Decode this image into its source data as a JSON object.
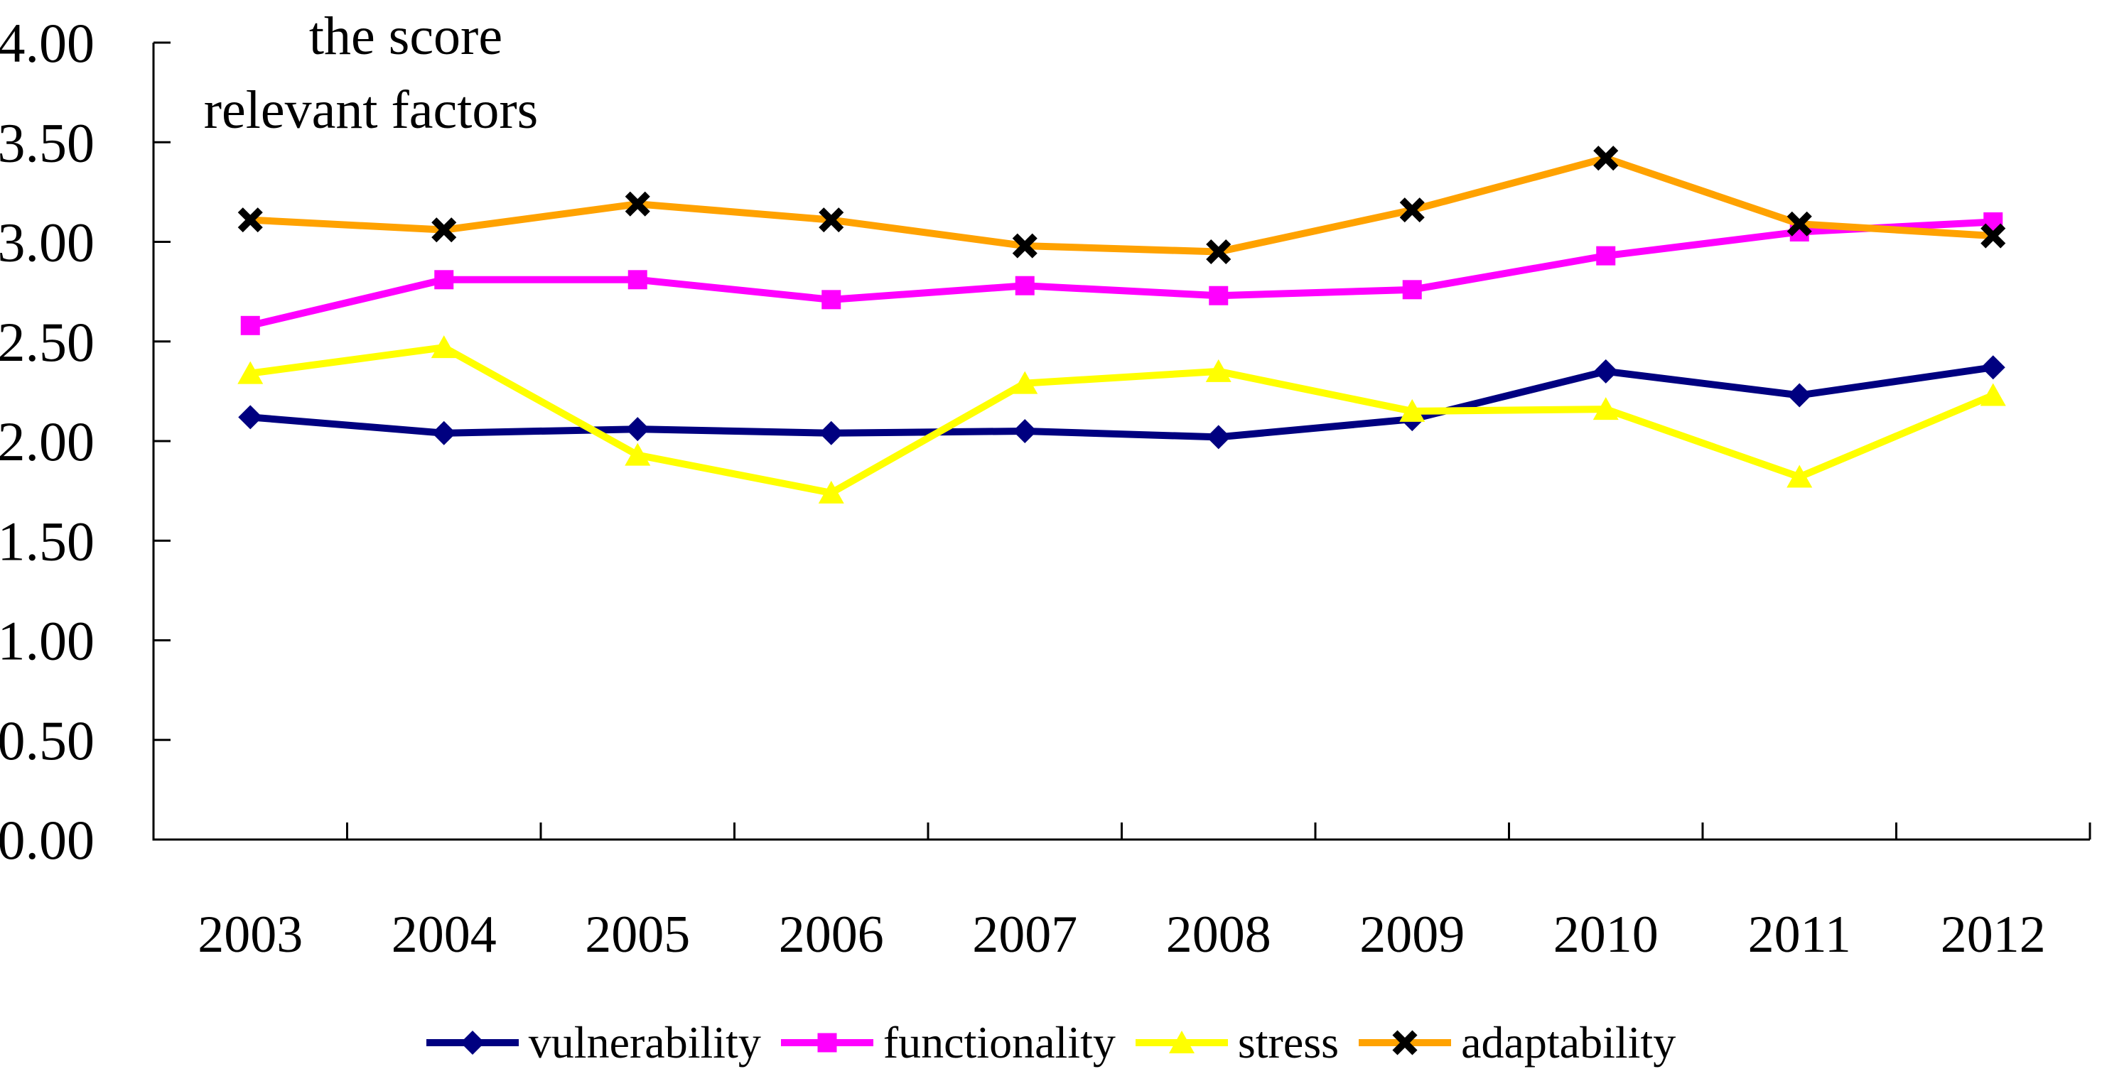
{
  "page": {
    "background": "#FFFFFF",
    "text_color": "#000000"
  },
  "chart_data": {
    "type": "line",
    "title_lines": [
      "the score",
      "relevant factors"
    ],
    "categories": [
      "2003",
      "2004",
      "2005",
      "2006",
      "2007",
      "2008",
      "2009",
      "2010",
      "2011",
      "2012"
    ],
    "series": [
      {
        "name": "vulnerability",
        "color": "#000080",
        "marker": "diamond",
        "marker_color": "#000080",
        "values": [
          2.12,
          2.04,
          2.06,
          2.04,
          2.05,
          2.02,
          2.11,
          2.35,
          2.23,
          2.37
        ]
      },
      {
        "name": "functionality",
        "color": "#FF00FF",
        "marker": "square",
        "marker_color": "#FF00FF",
        "values": [
          2.58,
          2.81,
          2.81,
          2.71,
          2.78,
          2.73,
          2.76,
          2.93,
          3.05,
          3.1
        ]
      },
      {
        "name": "stress",
        "color": "#FFFF00",
        "marker": "triangle",
        "marker_color": "#FFFF00",
        "values": [
          2.34,
          2.47,
          1.93,
          1.74,
          2.29,
          2.35,
          2.15,
          2.16,
          1.82,
          2.23
        ]
      },
      {
        "name": "adaptability",
        "color": "#FFA200",
        "marker": "x",
        "marker_color": "#000000",
        "values": [
          3.11,
          3.06,
          3.19,
          3.11,
          2.98,
          2.95,
          3.16,
          3.42,
          3.09,
          3.03
        ]
      }
    ],
    "ylim": [
      0,
      4
    ],
    "y_ticks": [
      "4.00",
      "3.50",
      "3.00",
      "2.50",
      "2.00",
      "1.50",
      "1.00",
      "0.50",
      "0.00"
    ],
    "grid": false,
    "legend_position": "bottom",
    "axis_color": "#000000"
  }
}
